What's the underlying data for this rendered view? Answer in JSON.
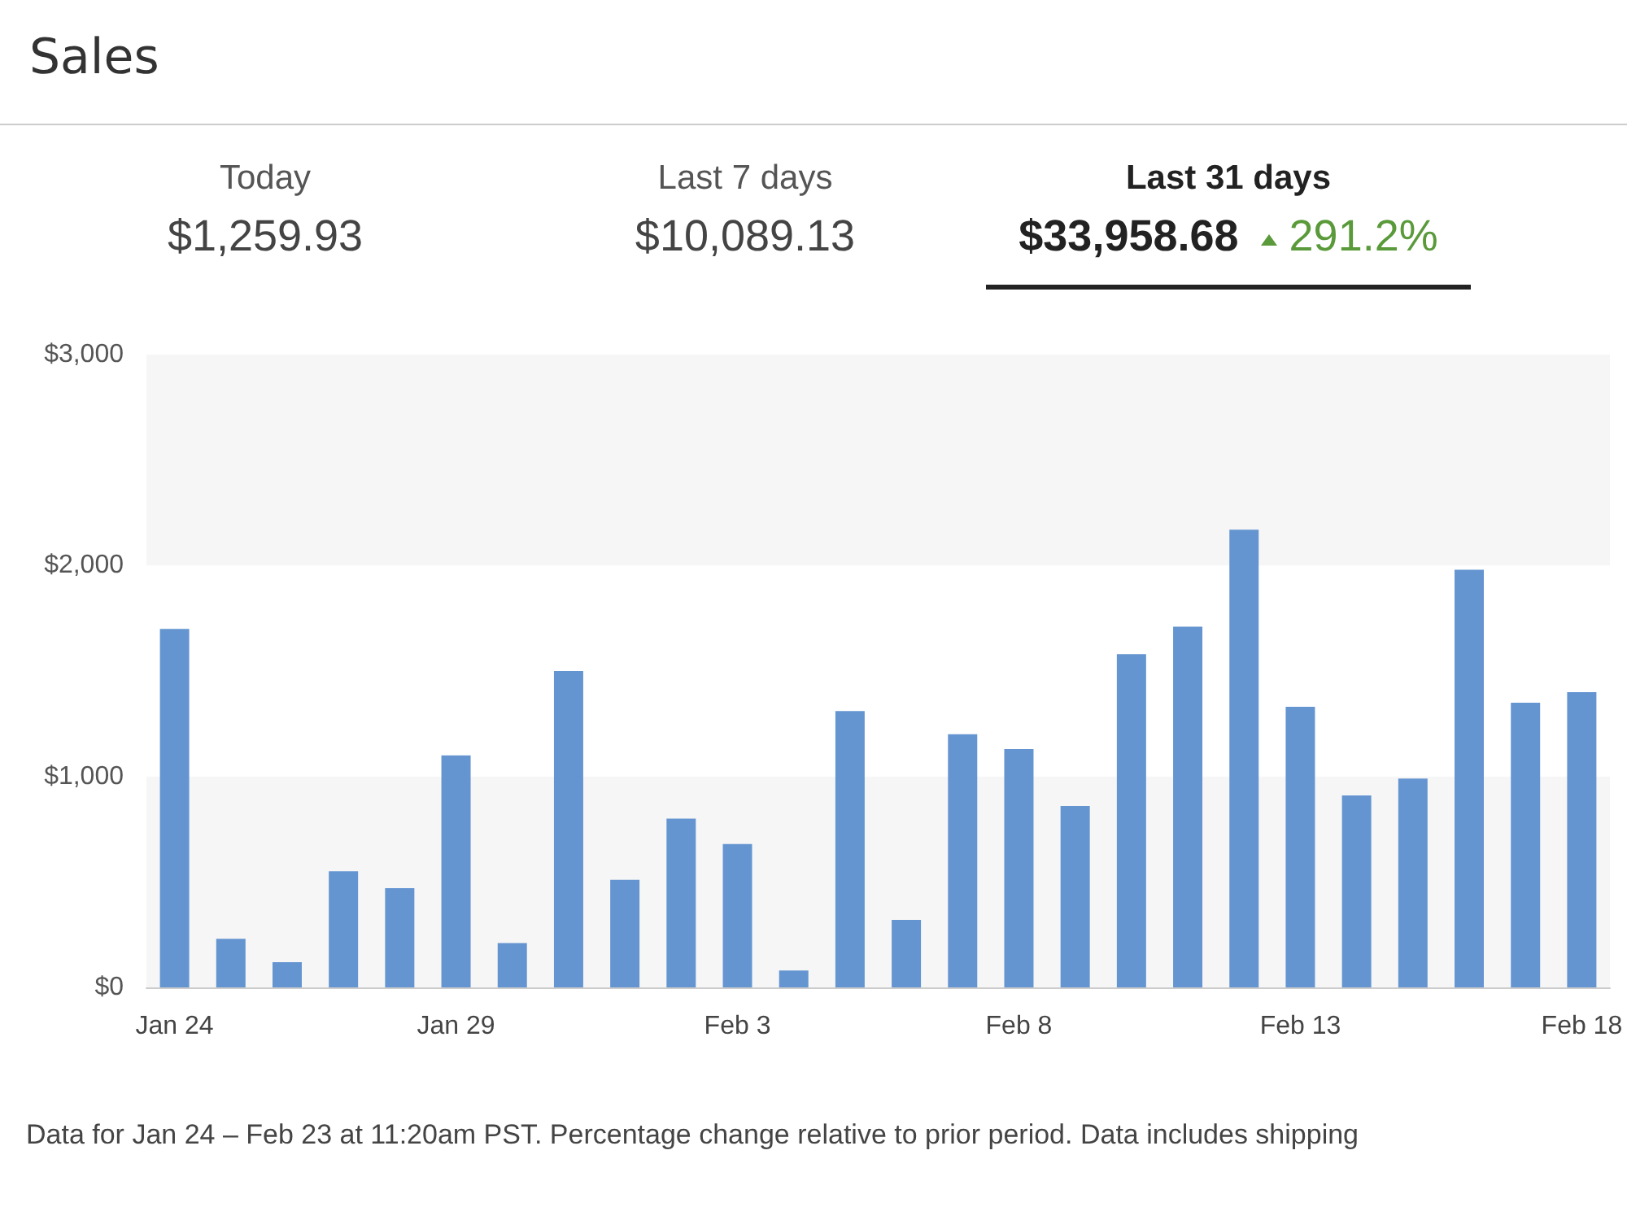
{
  "chart_data": {
    "type": "bar",
    "title": "Sales",
    "annotations": [
      "Today",
      "$1,259.93",
      "Last 7 days",
      "$10,089.13",
      "Last 31 days",
      "$33,958.68",
      "291.2%",
      "Data for Jan 24 – Feb 23 at 11:20am PST. Percentage change relative to prior period. Data includes shipping"
    ],
    "categories": [
      "Jan 24",
      null,
      null,
      null,
      null,
      "Jan 29",
      null,
      null,
      null,
      null,
      "Feb 3",
      null,
      null,
      null,
      null,
      "Feb 8",
      null,
      null,
      null,
      null,
      "Feb 13",
      null,
      null,
      null,
      null,
      "Feb 18"
    ],
    "values": [
      1700,
      230,
      120,
      550,
      470,
      1100,
      210,
      1500,
      510,
      800,
      680,
      80,
      1310,
      320,
      1200,
      1130,
      860,
      1580,
      1710,
      2170,
      1330,
      910,
      990,
      1980,
      1350,
      1400
    ],
    "color": "#6495d0",
    "ylim": [
      0,
      3000
    ],
    "yticks": [
      {
        "value": 0,
        "label": "$0"
      },
      {
        "value": 1000,
        "label": "$1,000"
      },
      {
        "value": 2000,
        "label": "$2,000"
      },
      {
        "value": 3000,
        "label": "$3,000"
      }
    ],
    "bands": [
      {
        "axis": "y",
        "from": 0,
        "to": 1000,
        "color": "#f6f6f6"
      },
      {
        "axis": "y",
        "from": 2000,
        "to": 3000,
        "color": "#f6f6f6"
      }
    ]
  }
}
